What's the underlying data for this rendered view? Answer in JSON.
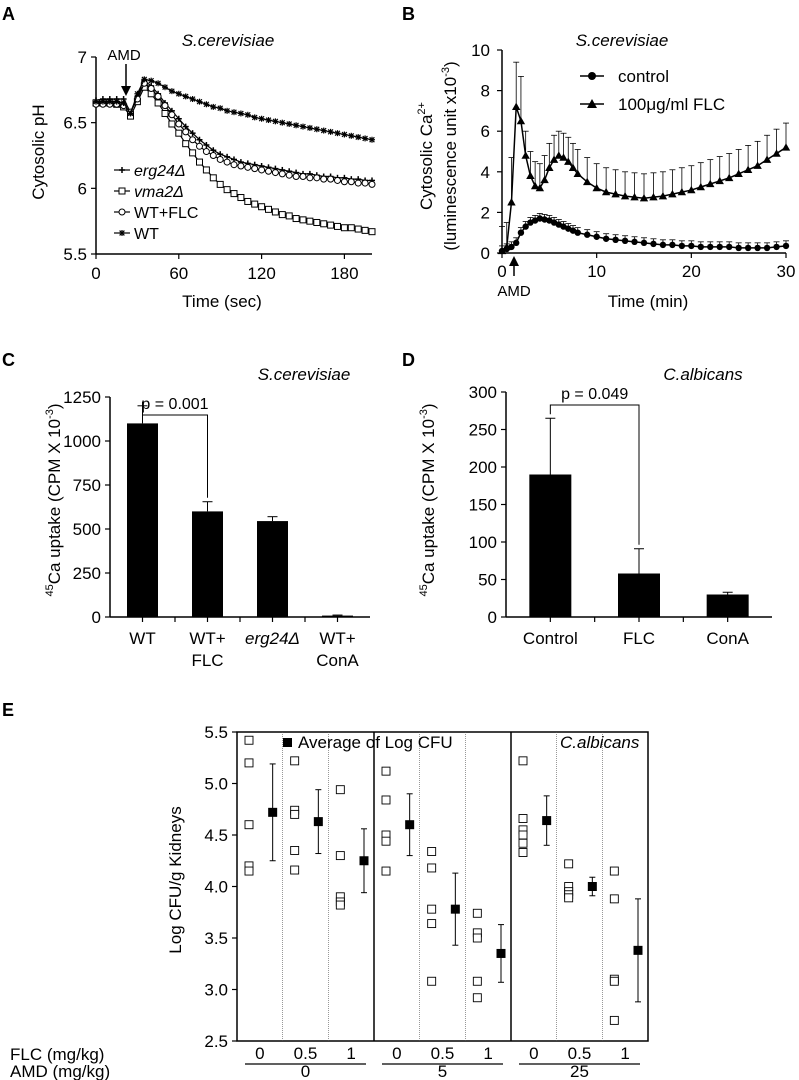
{
  "chart_data": [
    {
      "panel": "A",
      "type": "line",
      "title": "S.cerevisiae",
      "xlabel": "Time (sec)",
      "ylabel": "Cytosolic pH",
      "xlim": [
        0,
        200
      ],
      "ylim": [
        5.5,
        7
      ],
      "xticks": [
        "0",
        "60",
        "120",
        "180"
      ],
      "yticks": [
        "5.5",
        "6",
        "6.5",
        "7"
      ],
      "annotation": "AMD",
      "annotation_x": 22,
      "legend_position": "inside-left",
      "x": [
        0,
        5,
        10,
        15,
        20,
        25,
        30,
        35,
        40,
        45,
        50,
        55,
        60,
        65,
        70,
        75,
        80,
        85,
        90,
        95,
        100,
        105,
        110,
        115,
        120,
        125,
        130,
        135,
        140,
        145,
        150,
        155,
        160,
        165,
        170,
        175,
        180,
        185,
        190,
        195,
        200
      ],
      "series": [
        {
          "name": "erg24Δ",
          "marker": "plus",
          "values": [
            6.67,
            6.68,
            6.68,
            6.68,
            6.68,
            6.58,
            6.7,
            6.82,
            6.78,
            6.72,
            6.65,
            6.59,
            6.53,
            6.47,
            6.42,
            6.37,
            6.33,
            6.29,
            6.26,
            6.24,
            6.22,
            6.2,
            6.19,
            6.18,
            6.17,
            6.16,
            6.15,
            6.14,
            6.13,
            6.12,
            6.11,
            6.11,
            6.1,
            6.09,
            6.09,
            6.08,
            6.08,
            6.07,
            6.07,
            6.06,
            6.06
          ]
        },
        {
          "name": "vma2Δ",
          "marker": "square",
          "values": [
            6.65,
            6.65,
            6.65,
            6.64,
            6.62,
            6.55,
            6.66,
            6.77,
            6.72,
            6.65,
            6.57,
            6.49,
            6.42,
            6.34,
            6.27,
            6.2,
            6.14,
            6.08,
            6.03,
            5.99,
            5.96,
            5.93,
            5.9,
            5.88,
            5.86,
            5.84,
            5.82,
            5.8,
            5.79,
            5.77,
            5.76,
            5.75,
            5.74,
            5.73,
            5.72,
            5.71,
            5.7,
            5.7,
            5.69,
            5.68,
            5.67
          ]
        },
        {
          "name": "WT+FLC",
          "marker": "circle",
          "values": [
            6.64,
            6.64,
            6.64,
            6.64,
            6.63,
            6.58,
            6.68,
            6.8,
            6.76,
            6.7,
            6.63,
            6.56,
            6.49,
            6.43,
            6.37,
            6.32,
            6.28,
            6.25,
            6.22,
            6.2,
            6.18,
            6.17,
            6.16,
            6.15,
            6.14,
            6.13,
            6.12,
            6.11,
            6.1,
            6.09,
            6.09,
            6.08,
            6.08,
            6.07,
            6.07,
            6.06,
            6.05,
            6.05,
            6.04,
            6.04,
            6.03
          ]
        },
        {
          "name": "WT",
          "marker": "star",
          "values": [
            6.66,
            6.66,
            6.66,
            6.66,
            6.65,
            6.57,
            6.72,
            6.83,
            6.82,
            6.8,
            6.77,
            6.74,
            6.72,
            6.7,
            6.68,
            6.66,
            6.64,
            6.62,
            6.61,
            6.59,
            6.58,
            6.57,
            6.56,
            6.54,
            6.53,
            6.52,
            6.51,
            6.5,
            6.49,
            6.48,
            6.47,
            6.46,
            6.45,
            6.44,
            6.43,
            6.42,
            6.41,
            6.4,
            6.39,
            6.38,
            6.37
          ]
        }
      ]
    },
    {
      "panel": "B",
      "type": "line",
      "title": "S.cerevisiae",
      "xlabel": "Time (min)",
      "ylabel": "Cytosolic Ca²⁺ (luminescence unit x10⁻³)",
      "xlim": [
        0,
        30
      ],
      "ylim": [
        0,
        10
      ],
      "xticks": [
        "0",
        "10",
        "20",
        "30"
      ],
      "yticks": [
        "0",
        "2",
        "4",
        "6",
        "8",
        "10"
      ],
      "annotation": "AMD",
      "annotation_x": 1.2,
      "legend_position": "top-right",
      "x": [
        0,
        0.5,
        1,
        1.5,
        2,
        2.5,
        3,
        3.5,
        4,
        4.5,
        5,
        5.5,
        6,
        6.5,
        7,
        7.5,
        8,
        9,
        10,
        11,
        12,
        13,
        14,
        15,
        16,
        17,
        18,
        19,
        20,
        21,
        22,
        23,
        24,
        25,
        26,
        27,
        28,
        29,
        30
      ],
      "series": [
        {
          "name": "control",
          "marker": "circle",
          "values": [
            0.1,
            0.2,
            0.3,
            0.5,
            1.0,
            1.3,
            1.5,
            1.6,
            1.7,
            1.65,
            1.6,
            1.5,
            1.4,
            1.3,
            1.2,
            1.1,
            1.0,
            0.9,
            0.8,
            0.7,
            0.65,
            0.6,
            0.55,
            0.5,
            0.45,
            0.4,
            0.4,
            0.35,
            0.35,
            0.3,
            0.3,
            0.3,
            0.3,
            0.25,
            0.25,
            0.25,
            0.25,
            0.3,
            0.35
          ],
          "error": 0.25
        },
        {
          "name": "100μg/ml FLC",
          "marker": "triangle",
          "values": [
            0.1,
            0.3,
            2.5,
            7.2,
            6.5,
            4.8,
            3.8,
            3.3,
            3.2,
            3.6,
            4.2,
            4.6,
            4.8,
            4.7,
            4.5,
            4.2,
            3.9,
            3.5,
            3.2,
            3.0,
            2.9,
            2.8,
            2.75,
            2.7,
            2.75,
            2.8,
            2.9,
            3.0,
            3.1,
            3.25,
            3.4,
            3.55,
            3.7,
            3.9,
            4.1,
            4.3,
            4.6,
            4.9,
            5.2
          ],
          "error": 1.2
        }
      ]
    },
    {
      "panel": "C",
      "type": "bar",
      "title": "S.cerevisiae",
      "ylabel": "45Ca uptake (CPM X 10⁻³)",
      "ylim": [
        0,
        1250
      ],
      "yticks": [
        "0",
        "250",
        "500",
        "750",
        "1000",
        "1250"
      ],
      "categories": [
        [
          "WT"
        ],
        [
          "WT+",
          "FLC"
        ],
        [
          "erg24Δ"
        ],
        [
          "WT+",
          "ConA"
        ]
      ],
      "values": [
        1100,
        600,
        545,
        8
      ],
      "errors": [
        100,
        55,
        25,
        3
      ],
      "significance": {
        "label": "p = 0.001",
        "between": [
          0,
          1
        ]
      }
    },
    {
      "panel": "D",
      "type": "bar",
      "title": "C.albicans",
      "ylabel": "45Ca uptake (CPM X 10⁻³)",
      "ylim": [
        0,
        300
      ],
      "yticks": [
        "0",
        "50",
        "100",
        "150",
        "200",
        "250",
        "300"
      ],
      "categories": [
        [
          "Control"
        ],
        [
          "FLC"
        ],
        [
          "ConA"
        ]
      ],
      "values": [
        190,
        58,
        30
      ],
      "errors": [
        75,
        33,
        3
      ],
      "significance": {
        "label": "p = 0.049",
        "between": [
          0,
          1
        ]
      }
    },
    {
      "panel": "E",
      "type": "scatter",
      "title": "C.albicans",
      "legend": "Average of Log CFU",
      "ylabel": "Log CFU/g Kidneys",
      "ylim": [
        2.5,
        5.5
      ],
      "yticks": [
        "2.5",
        "3.0",
        "3.5",
        "4.0",
        "4.5",
        "5.0",
        "5.5"
      ],
      "row_labels": [
        "FLC  (mg/kg)",
        "AMD (mg/kg)"
      ],
      "groups": [
        {
          "amd": "0",
          "flc": [
            "0",
            "0.5",
            "1"
          ]
        },
        {
          "amd": "5",
          "flc": [
            "0",
            "0.5",
            "1"
          ]
        },
        {
          "amd": "25",
          "flc": [
            "0",
            "0.5",
            "1"
          ]
        }
      ],
      "points": [
        [
          5.42,
          5.2,
          4.6,
          4.2,
          4.15
        ],
        [
          5.22,
          4.74,
          4.7,
          4.35,
          4.16
        ],
        [
          4.94,
          4.3,
          3.9,
          3.85,
          3.82
        ],
        [
          5.12,
          4.84,
          4.5,
          4.44,
          4.15
        ],
        [
          4.34,
          4.18,
          3.78,
          3.64,
          3.08
        ],
        [
          3.74,
          3.55,
          3.5,
          3.08,
          2.92
        ],
        [
          5.22,
          4.66,
          4.55,
          4.5,
          4.42,
          4.33
        ],
        [
          4.22,
          4.0,
          3.95,
          3.92,
          3.89
        ],
        [
          4.15,
          3.88,
          3.1,
          3.08,
          2.7
        ]
      ],
      "means": [
        4.72,
        4.63,
        4.25,
        4.6,
        3.78,
        3.35,
        4.64,
        4.0,
        3.38
      ],
      "sd": [
        0.47,
        0.31,
        0.31,
        0.3,
        0.35,
        0.28,
        0.24,
        0.09,
        0.5
      ]
    }
  ],
  "panel_labels": [
    "A",
    "B",
    "C",
    "D",
    "E"
  ]
}
